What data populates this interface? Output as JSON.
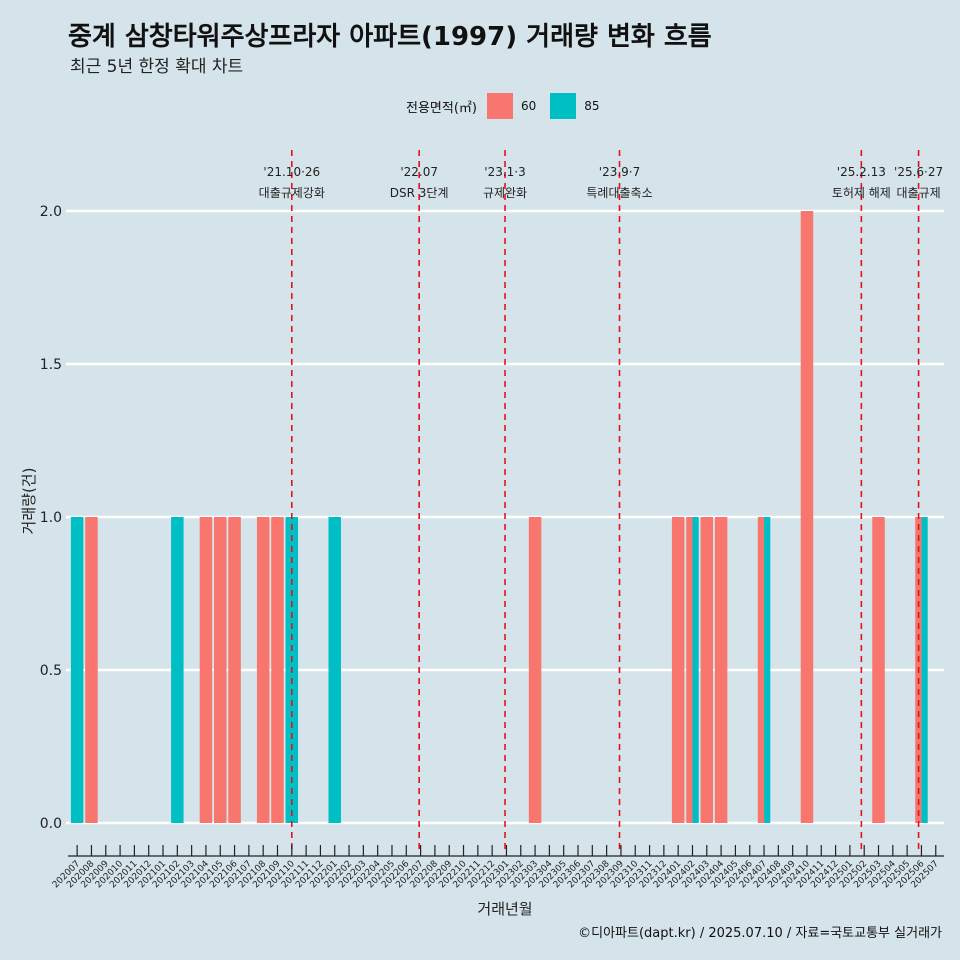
{
  "title": "중계 삼창타워주상프라자 아파트(1997) 거래량 변화 흐름",
  "subtitle": "최근 5년 한정 확대 차트",
  "legend": {
    "title": "전용면적(㎡)",
    "items": [
      {
        "label": "60",
        "color": "#F8766D"
      },
      {
        "label": "85",
        "color": "#00BFC4"
      }
    ]
  },
  "caption": "©디아파트(dapt.kr) / 2025.07.10 / 자료=국토교통부 실거래가",
  "chart_data": {
    "type": "bar",
    "xlabel": "거래년월",
    "ylabel": "거래량(건)",
    "ylim": [
      0,
      2
    ],
    "yticks": [
      "0.0",
      "0.5",
      "1.0",
      "1.5",
      "2.0"
    ],
    "grid": true,
    "legend_position": "top",
    "categories": [
      "202007",
      "202008",
      "202009",
      "202010",
      "202011",
      "202012",
      "202101",
      "202102",
      "202103",
      "202104",
      "202105",
      "202106",
      "202107",
      "202108",
      "202109",
      "202110",
      "202111",
      "202112",
      "202201",
      "202202",
      "202203",
      "202204",
      "202205",
      "202206",
      "202207",
      "202208",
      "202209",
      "202210",
      "202211",
      "202212",
      "202301",
      "202302",
      "202303",
      "202304",
      "202305",
      "202306",
      "202307",
      "202308",
      "202309",
      "202310",
      "202311",
      "202312",
      "202401",
      "202402",
      "202403",
      "202404",
      "202405",
      "202406",
      "202407",
      "202408",
      "202409",
      "202410",
      "202411",
      "202412",
      "202501",
      "202502",
      "202503",
      "202504",
      "202505",
      "202506",
      "202507"
    ],
    "series": [
      {
        "name": "60",
        "color": "#F8766D",
        "values": [
          0,
          1,
          0,
          0,
          0,
          0,
          0,
          0,
          0,
          1,
          1,
          1,
          0,
          1,
          1,
          0,
          0,
          0,
          0,
          0,
          0,
          0,
          0,
          0,
          0,
          0,
          0,
          0,
          0,
          0,
          0,
          0,
          1,
          0,
          0,
          0,
          0,
          0,
          0,
          0,
          0,
          0,
          1,
          1,
          1,
          1,
          0,
          0,
          1,
          0,
          0,
          2,
          0,
          0,
          0,
          0,
          1,
          0,
          0,
          1,
          0
        ]
      },
      {
        "name": "85",
        "color": "#00BFC4",
        "values": [
          1,
          0,
          0,
          0,
          0,
          0,
          0,
          1,
          0,
          0,
          0,
          0,
          0,
          0,
          0,
          1,
          0,
          0,
          1,
          0,
          0,
          0,
          0,
          0,
          0,
          0,
          0,
          0,
          0,
          0,
          0,
          0,
          0,
          0,
          0,
          0,
          0,
          0,
          0,
          0,
          0,
          0,
          0,
          1,
          0,
          0,
          0,
          0,
          1,
          0,
          0,
          0,
          0,
          0,
          0,
          0,
          0,
          0,
          0,
          1,
          0
        ]
      }
    ],
    "annotations": [
      {
        "date": "'21.10·26",
        "label": "대출규제강화",
        "position": 15.5
      },
      {
        "date": "'22.07",
        "label": "DSR 3단계",
        "position": 24.4
      },
      {
        "date": "'23.1·3",
        "label": "규제완화",
        "position": 30.4
      },
      {
        "date": "'23.9·7",
        "label": "특례대출축소",
        "position": 38.4
      },
      {
        "date": "'25.2.13",
        "label": "토허제 해제",
        "position": 55.3
      },
      {
        "date": "'25.6·27",
        "label": "대출규제",
        "position": 59.3
      }
    ]
  }
}
